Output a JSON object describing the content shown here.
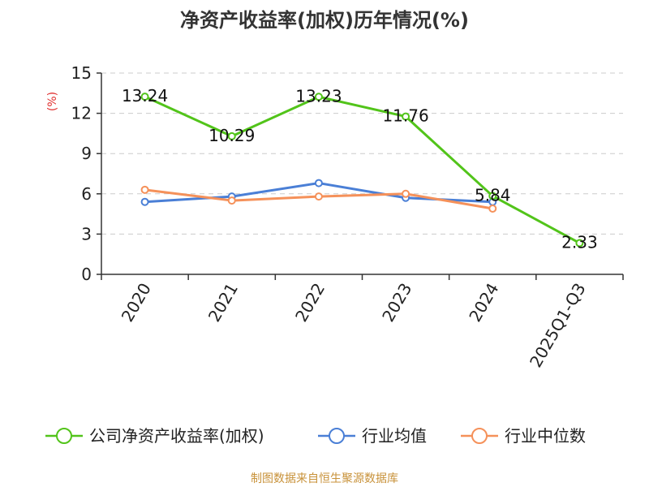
{
  "chart_data": {
    "type": "line",
    "title": "净资产收益率(加权)历年情况(%)",
    "ylabel": "(%)",
    "xlabel": "",
    "categories": [
      "2020",
      "2021",
      "2022",
      "2023",
      "2024",
      "2025Q1-Q3"
    ],
    "ylim": [
      0,
      15
    ],
    "yticks": [
      0,
      3,
      6,
      9,
      12,
      15
    ],
    "ytick_labels": [
      "0",
      "3",
      "6",
      "9",
      "12",
      "15"
    ],
    "grid": true,
    "legend_position": "bottom",
    "series": [
      {
        "name": "公司净资产收益率(加权)",
        "color": "#52c41a",
        "values": [
          13.24,
          10.29,
          13.23,
          11.76,
          5.84,
          2.33
        ],
        "labels": [
          "13.24",
          "10.29",
          "13.23",
          "11.76",
          "5.84",
          "2.33"
        ]
      },
      {
        "name": "行业均值",
        "color": "#4a7fd6",
        "values": [
          5.4,
          5.8,
          6.8,
          5.7,
          5.4,
          null
        ]
      },
      {
        "name": "行业中位数",
        "color": "#f5915a",
        "values": [
          6.3,
          5.5,
          5.8,
          6.0,
          4.9,
          null
        ]
      }
    ]
  },
  "ylabel_color": "#e0302f",
  "source_text": "制图数据来自恒生聚源数据库",
  "source_color": "#c8923a"
}
